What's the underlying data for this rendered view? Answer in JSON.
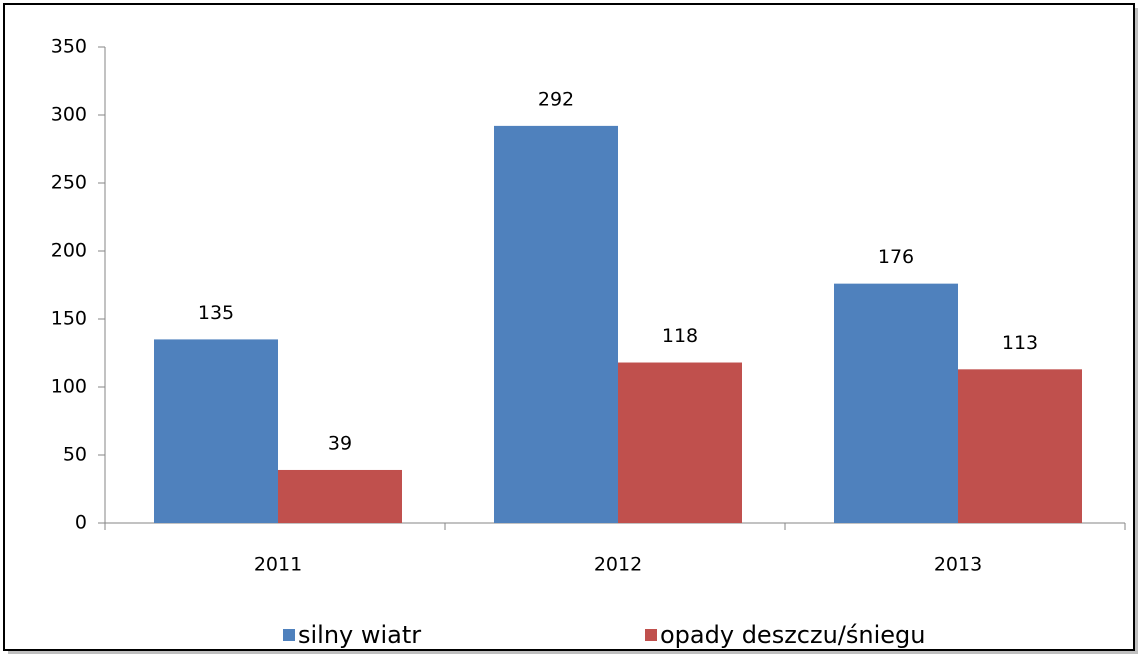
{
  "chart_data": {
    "type": "bar",
    "categories": [
      "2011",
      "2012",
      "2013"
    ],
    "series": [
      {
        "name": "silny wiatr",
        "color": "#4f81bd",
        "values": [
          135,
          292,
          176
        ]
      },
      {
        "name": "opady deszczu/śniegu",
        "color": "#c0504d",
        "values": [
          39,
          118,
          113
        ]
      }
    ],
    "ylim": [
      0,
      350
    ],
    "yticks": [
      0,
      50,
      100,
      150,
      200,
      250,
      300,
      350
    ],
    "grid": false,
    "legend": "bottom"
  }
}
